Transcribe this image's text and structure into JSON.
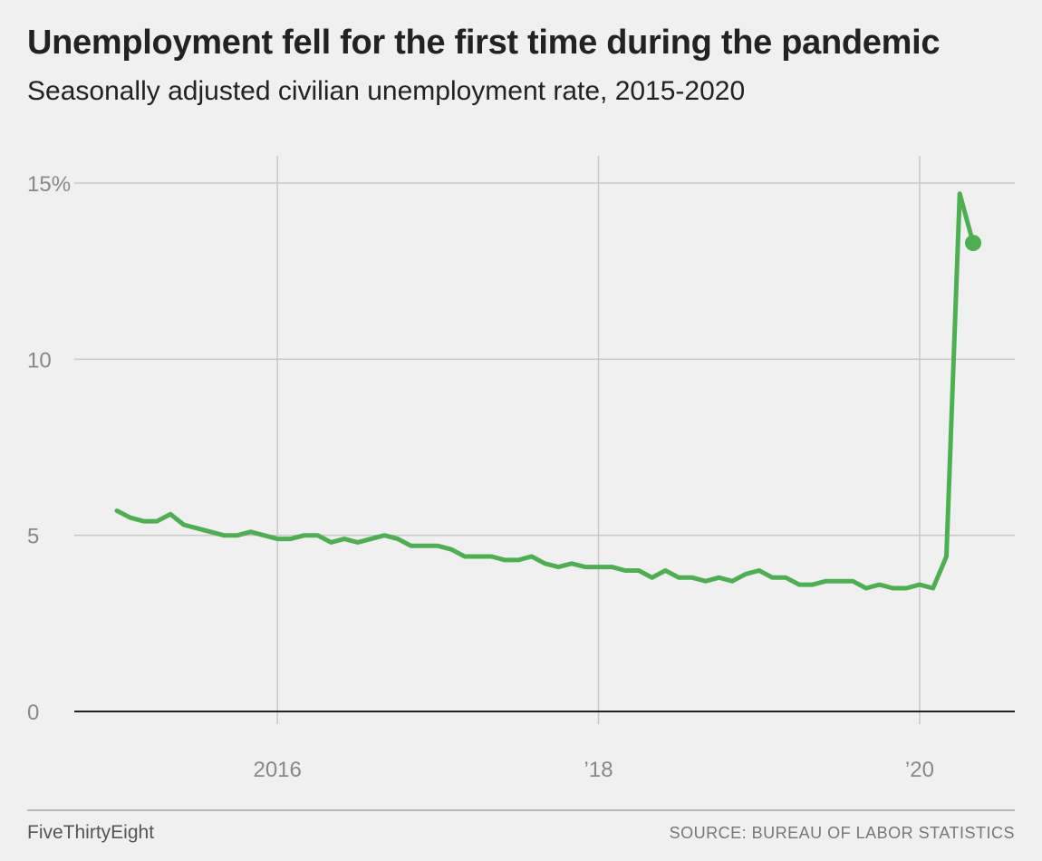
{
  "header": {
    "title": "Unemployment fell for the first time during the pandemic",
    "subtitle": "Seasonally adjusted civilian unemployment rate, 2015-2020"
  },
  "footer": {
    "brand": "FiveThirtyEight",
    "source": "SOURCE: BUREAU OF LABOR STATISTICS"
  },
  "colors": {
    "line": "#4caf50",
    "grid": "#c8c8c8",
    "baseline": "#222222",
    "tick_text": "#888888"
  },
  "chart_data": {
    "type": "line",
    "title": "Unemployment fell for the first time during the pandemic",
    "subtitle": "Seasonally adjusted civilian unemployment rate, 2015-2020",
    "xlabel": "",
    "ylabel": "",
    "ylim": [
      0,
      15
    ],
    "xlim": [
      "2014-12",
      "2020-08"
    ],
    "grid": true,
    "y_ticks": [
      {
        "value": 0,
        "label": "0"
      },
      {
        "value": 5,
        "label": "5"
      },
      {
        "value": 10,
        "label": "10"
      },
      {
        "value": 15,
        "label": "15%"
      }
    ],
    "x_ticks": [
      {
        "value": "2016-01",
        "label": "2016"
      },
      {
        "value": "2018-01",
        "label": "’18"
      },
      {
        "value": "2020-01",
        "label": "’20"
      }
    ],
    "series": [
      {
        "x": [
          "2015-01",
          "2015-02",
          "2015-03",
          "2015-04",
          "2015-05",
          "2015-06",
          "2015-07",
          "2015-08",
          "2015-09",
          "2015-10",
          "2015-11",
          "2015-12",
          "2016-01",
          "2016-02",
          "2016-03",
          "2016-04",
          "2016-05",
          "2016-06",
          "2016-07",
          "2016-08",
          "2016-09",
          "2016-10",
          "2016-11",
          "2016-12",
          "2017-01",
          "2017-02",
          "2017-03",
          "2017-04",
          "2017-05",
          "2017-06",
          "2017-07",
          "2017-08",
          "2017-09",
          "2017-10",
          "2017-11",
          "2017-12",
          "2018-01",
          "2018-02",
          "2018-03",
          "2018-04",
          "2018-05",
          "2018-06",
          "2018-07",
          "2018-08",
          "2018-09",
          "2018-10",
          "2018-11",
          "2018-12",
          "2019-01",
          "2019-02",
          "2019-03",
          "2019-04",
          "2019-05",
          "2019-06",
          "2019-07",
          "2019-08",
          "2019-09",
          "2019-10",
          "2019-11",
          "2019-12",
          "2020-01",
          "2020-02",
          "2020-03",
          "2020-04",
          "2020-05"
        ],
        "values": [
          5.7,
          5.5,
          5.4,
          5.4,
          5.6,
          5.3,
          5.2,
          5.1,
          5.0,
          5.0,
          5.1,
          5.0,
          4.9,
          4.9,
          5.0,
          5.0,
          4.8,
          4.9,
          4.8,
          4.9,
          5.0,
          4.9,
          4.7,
          4.7,
          4.7,
          4.6,
          4.4,
          4.4,
          4.4,
          4.3,
          4.3,
          4.4,
          4.2,
          4.1,
          4.2,
          4.1,
          4.1,
          4.1,
          4.0,
          4.0,
          3.8,
          4.0,
          3.8,
          3.8,
          3.7,
          3.8,
          3.7,
          3.9,
          4.0,
          3.8,
          3.8,
          3.6,
          3.6,
          3.7,
          3.7,
          3.7,
          3.5,
          3.6,
          3.5,
          3.5,
          3.6,
          3.5,
          4.4,
          14.7,
          13.3
        ]
      }
    ]
  }
}
